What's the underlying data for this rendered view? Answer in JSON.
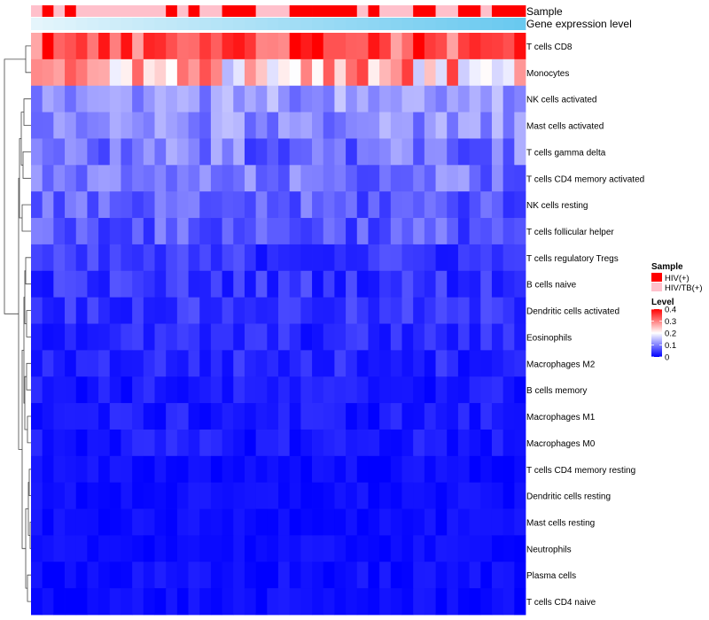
{
  "chart_data": {
    "type": "heatmap",
    "title": "",
    "annotation_labels": [
      "Sample",
      "Gene expression level"
    ],
    "rows": [
      "T cells CD8",
      "Monocytes",
      "NK cells activated",
      "Mast cells activated",
      "T cells gamma delta",
      "T cells CD4 memory activated",
      "NK cells resting",
      "T cells follicular helper",
      "T cells regulatory  Tregs",
      "B cells naive",
      "Dendritic cells activated",
      "Eosinophils",
      "Macrophages M2",
      "B cells memory",
      "Macrophages M1",
      "Macrophages M0",
      "T cells CD4 memory resting",
      "Dendritic cells resting",
      "Mast cells resting",
      "Neutrophils",
      "Plasma cells",
      "T cells CD4 naive"
    ],
    "n_samples": 44,
    "sample_groups": [
      "HIV/TB(+)",
      "HIV(+)",
      "HIV/TB(+)",
      "HIV(+)",
      "HIV/TB(+)",
      "HIV/TB(+)",
      "HIV/TB(+)",
      "HIV/TB(+)",
      "HIV/TB(+)",
      "HIV/TB(+)",
      "HIV/TB(+)",
      "HIV/TB(+)",
      "HIV(+)",
      "HIV/TB(+)",
      "HIV(+)",
      "HIV/TB(+)",
      "HIV/TB(+)",
      "HIV(+)",
      "HIV(+)",
      "HIV(+)",
      "HIV/TB(+)",
      "HIV/TB(+)",
      "HIV/TB(+)",
      "HIV(+)",
      "HIV(+)",
      "HIV(+)",
      "HIV(+)",
      "HIV(+)",
      "HIV(+)",
      "HIV/TB(+)",
      "HIV(+)",
      "HIV/TB(+)",
      "HIV/TB(+)",
      "HIV/TB(+)",
      "HIV(+)",
      "HIV(+)",
      "HIV/TB(+)",
      "HIV/TB(+)",
      "HIV(+)",
      "HIV(+)",
      "HIV/TB(+)",
      "HIV(+)",
      "HIV(+)",
      "HIV(+)"
    ],
    "expression_level": [
      0.02,
      0.05,
      0.07,
      0.09,
      0.12,
      0.14,
      0.16,
      0.18,
      0.2,
      0.22,
      0.24,
      0.26,
      0.28,
      0.3,
      0.32,
      0.34,
      0.36,
      0.38,
      0.4,
      0.42,
      0.44,
      0.46,
      0.48,
      0.5,
      0.52,
      0.54,
      0.56,
      0.58,
      0.6,
      0.62,
      0.64,
      0.66,
      0.68,
      0.7,
      0.72,
      0.74,
      0.76,
      0.78,
      0.8,
      0.82,
      0.84,
      0.86,
      0.88,
      0.9
    ],
    "row_means": [
      0.33,
      0.24,
      0.12,
      0.11,
      0.09,
      0.09,
      0.07,
      0.07,
      0.04,
      0.04,
      0.04,
      0.03,
      0.03,
      0.02,
      0.02,
      0.02,
      0.01,
      0.01,
      0.01,
      0.01,
      0.01,
      0.01
    ],
    "row_spread": [
      0.06,
      0.1,
      0.04,
      0.04,
      0.05,
      0.04,
      0.04,
      0.04,
      0.03,
      0.03,
      0.025,
      0.025,
      0.025,
      0.02,
      0.02,
      0.02,
      0.012,
      0.012,
      0.01,
      0.01,
      0.015,
      0.012
    ],
    "color_scale": {
      "low": "#0000ff",
      "mid": "#ffffff",
      "high": "#ff0000",
      "min": 0,
      "mid_value": 0.2,
      "max": 0.4
    },
    "legend": {
      "sample_title": "Sample",
      "sample_entries": [
        {
          "label": "HIV(+)",
          "color": "#ff0000"
        },
        {
          "label": "HIV/TB(+)",
          "color": "#ffc0cb"
        }
      ],
      "level_title": "Level",
      "level_ticks": [
        0.4,
        0.3,
        0.2,
        0.1,
        0
      ],
      "level_tick_labels": [
        "0.4",
        "0.3",
        "0.2",
        "0.1",
        "0"
      ],
      "placement": "right"
    },
    "gene_expression_colors": {
      "low": "#e8f6fc",
      "high": "#5bc4ee"
    }
  }
}
